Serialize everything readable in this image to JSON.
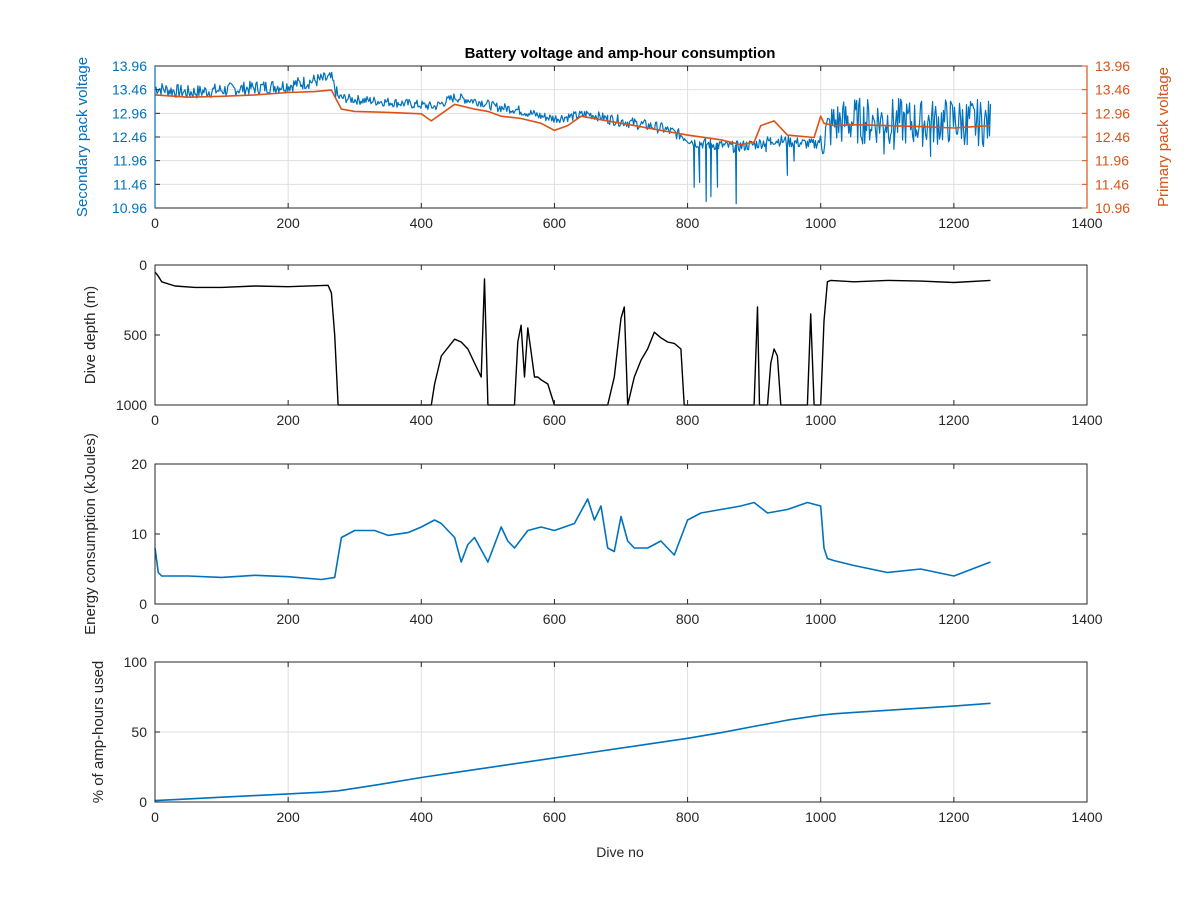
{
  "figure": {
    "title": "Battery voltage and amp-hour consumption",
    "xlabel": "Dive no"
  },
  "colors": {
    "blue": "#0072BD",
    "orange": "#D95319",
    "black": "#000000",
    "grid": "#dfdfdf",
    "axis": "#262626"
  },
  "chart_data": [
    {
      "type": "line",
      "ylabel": "Secondary pack voltage",
      "ylabel_right": "Primary pack voltage",
      "xlim": [
        0,
        1400
      ],
      "ylim": [
        10.96,
        13.96
      ],
      "x_ticks": [
        0,
        200,
        400,
        600,
        800,
        1000,
        1200,
        1400
      ],
      "y_ticks": [
        "10.96",
        "11.46",
        "11.96",
        "12.46",
        "12.96",
        "13.46",
        "13.96"
      ],
      "y_ticks_right": [
        "10.96",
        "11.46",
        "11.96",
        "12.46",
        "12.96",
        "13.46",
        "13.96"
      ],
      "grid": true,
      "series": [
        {
          "axis": "left",
          "color": "#0072BD",
          "x": [
            0,
            20,
            50,
            100,
            150,
            200,
            240,
            265,
            275,
            300,
            350,
            390,
            420,
            450,
            470,
            490,
            510,
            540,
            580,
            600,
            630,
            650,
            680,
            720,
            760,
            790,
            810,
            840,
            870,
            900,
            930,
            960,
            990,
            1000,
            1020,
            1050,
            1100,
            1150,
            1200,
            1250
          ],
          "y": [
            13.5,
            13.45,
            13.4,
            13.45,
            13.5,
            13.55,
            13.65,
            13.7,
            13.3,
            13.25,
            13.2,
            13.15,
            13.1,
            13.3,
            13.25,
            13.2,
            13.1,
            13.05,
            12.9,
            12.85,
            12.9,
            12.95,
            12.85,
            12.75,
            12.65,
            12.5,
            12.35,
            12.3,
            12.25,
            12.3,
            12.4,
            12.35,
            12.3,
            12.4,
            12.75,
            12.8,
            12.8,
            12.75,
            12.8,
            12.75
          ],
          "noisy_segments": [
            {
              "x": [
                0,
                275
              ],
              "amplitude": 0.15
            },
            {
              "x": [
                275,
                680
              ],
              "amplitude": 0.1
            },
            {
              "x": [
                680,
                1000
              ],
              "amplitude": 0.12
            },
            {
              "x": [
                1000,
                1255
              ],
              "amplitude": 0.5
            }
          ],
          "spikes": [
            {
              "x": 810,
              "y": 11.4
            },
            {
              "x": 818,
              "y": 11.5
            },
            {
              "x": 828,
              "y": 11.1
            },
            {
              "x": 835,
              "y": 11.2
            },
            {
              "x": 845,
              "y": 11.4
            },
            {
              "x": 873,
              "y": 11.05
            },
            {
              "x": 918,
              "y": 12.15
            },
            {
              "x": 925,
              "y": 12.3
            },
            {
              "x": 950,
              "y": 11.65
            },
            {
              "x": 960,
              "y": 11.95
            },
            {
              "x": 1095,
              "y": 12.1
            },
            {
              "x": 1110,
              "y": 12.2
            },
            {
              "x": 1165,
              "y": 12.05
            },
            {
              "x": 1220,
              "y": 12.3
            }
          ]
        },
        {
          "axis": "right",
          "color": "#D95319",
          "x": [
            0,
            50,
            100,
            150,
            200,
            240,
            265,
            280,
            300,
            350,
            400,
            415,
            430,
            450,
            480,
            500,
            520,
            550,
            580,
            600,
            620,
            640,
            680,
            720,
            760,
            800,
            850,
            880,
            900,
            910,
            930,
            950,
            990,
            1000,
            1005,
            1020,
            1050,
            1100,
            1150,
            1200,
            1255
          ],
          "y": [
            13.35,
            13.3,
            13.32,
            13.35,
            13.4,
            13.42,
            13.45,
            13.05,
            13.0,
            12.98,
            12.95,
            12.8,
            12.95,
            13.15,
            13.05,
            13.0,
            12.9,
            12.85,
            12.75,
            12.6,
            12.7,
            12.9,
            12.8,
            12.7,
            12.6,
            12.5,
            12.4,
            12.3,
            12.35,
            12.7,
            12.8,
            12.5,
            12.45,
            12.9,
            12.75,
            12.7,
            12.72,
            12.7,
            12.68,
            12.65,
            12.7
          ]
        }
      ]
    },
    {
      "type": "line",
      "ylabel": "Dive depth (m)",
      "xlim": [
        0,
        1400
      ],
      "ylim": [
        0,
        1000
      ],
      "y_reversed": true,
      "x_ticks": [
        0,
        200,
        400,
        600,
        800,
        1000,
        1200,
        1400
      ],
      "y_ticks": [
        "0",
        "500",
        "1000"
      ],
      "grid": false,
      "series": [
        {
          "color": "#000000",
          "x": [
            0,
            5,
            10,
            30,
            60,
            100,
            150,
            200,
            260,
            265,
            270,
            275,
            278,
            300,
            350,
            400,
            415,
            420,
            430,
            450,
            460,
            470,
            480,
            490,
            495,
            500,
            505,
            510,
            540,
            545,
            550,
            555,
            560,
            565,
            570,
            575,
            580,
            590,
            600,
            605,
            610,
            640,
            680,
            690,
            700,
            705,
            710,
            720,
            730,
            740,
            750,
            760,
            770,
            780,
            790,
            795,
            800,
            850,
            900,
            905,
            908,
            912,
            920,
            925,
            930,
            935,
            940,
            945,
            950,
            980,
            985,
            990,
            995,
            1000,
            1005,
            1010,
            1015,
            1050,
            1100,
            1150,
            1200,
            1255
          ],
          "y": [
            50,
            80,
            120,
            150,
            160,
            160,
            150,
            155,
            145,
            200,
            500,
            1000,
            1000,
            1000,
            1000,
            1000,
            1000,
            850,
            650,
            530,
            550,
            600,
            700,
            800,
            100,
            1000,
            1000,
            1000,
            1000,
            550,
            430,
            800,
            450,
            620,
            800,
            800,
            820,
            850,
            1000,
            1000,
            1000,
            1000,
            1000,
            800,
            380,
            300,
            1000,
            800,
            680,
            600,
            480,
            520,
            550,
            560,
            600,
            1000,
            1000,
            1000,
            1000,
            300,
            1000,
            1000,
            1000,
            700,
            600,
            650,
            1000,
            1000,
            1000,
            1000,
            350,
            1000,
            1000,
            1000,
            400,
            120,
            110,
            120,
            110,
            115,
            125,
            110
          ]
        }
      ]
    },
    {
      "type": "line",
      "ylabel": "Energy consumption (kJoules)",
      "xlim": [
        0,
        1400
      ],
      "ylim": [
        0,
        20
      ],
      "x_ticks": [
        0,
        200,
        400,
        600,
        800,
        1000,
        1200,
        1400
      ],
      "y_ticks": [
        "0",
        "10",
        "20"
      ],
      "grid": false,
      "series": [
        {
          "color": "#0072BD",
          "x": [
            0,
            5,
            10,
            50,
            100,
            150,
            200,
            250,
            270,
            280,
            300,
            330,
            350,
            380,
            400,
            420,
            430,
            450,
            460,
            470,
            480,
            500,
            520,
            530,
            540,
            560,
            580,
            600,
            630,
            650,
            660,
            670,
            680,
            690,
            700,
            710,
            720,
            740,
            760,
            780,
            800,
            820,
            850,
            880,
            900,
            920,
            950,
            980,
            1000,
            1005,
            1010,
            1020,
            1050,
            1100,
            1150,
            1200,
            1255
          ],
          "y": [
            8,
            4.5,
            4,
            4,
            3.8,
            4.1,
            3.9,
            3.5,
            3.8,
            9.5,
            10.5,
            10.5,
            9.8,
            10.2,
            11,
            12,
            11.5,
            9.5,
            6,
            8.5,
            9.5,
            6,
            11,
            9,
            8,
            10.5,
            11,
            10.5,
            11.5,
            15,
            12,
            14,
            8,
            7.5,
            12.5,
            9,
            8,
            8,
            9,
            7,
            12,
            13,
            13.5,
            14,
            14.5,
            13,
            13.5,
            14.5,
            14,
            8,
            6.5,
            6.2,
            5.5,
            4.5,
            5,
            4,
            6
          ]
        }
      ]
    },
    {
      "type": "line",
      "ylabel": "% of amp-hours used",
      "xlim": [
        0,
        1400
      ],
      "ylim": [
        0,
        100
      ],
      "x_ticks": [
        0,
        200,
        400,
        600,
        800,
        1000,
        1200,
        1400
      ],
      "y_ticks": [
        "0",
        "50",
        "100"
      ],
      "grid": true,
      "series": [
        {
          "color": "#0072BD",
          "x": [
            0,
            50,
            100,
            150,
            200,
            250,
            275,
            300,
            350,
            400,
            450,
            500,
            550,
            600,
            650,
            700,
            750,
            800,
            850,
            900,
            950,
            1000,
            1020,
            1050,
            1100,
            1150,
            1200,
            1255
          ],
          "y": [
            1,
            2.2,
            3.4,
            4.6,
            5.8,
            7,
            8,
            9.8,
            13.5,
            17.5,
            21,
            24.5,
            28,
            31.5,
            35,
            38.5,
            42,
            45.5,
            49.5,
            54,
            58.5,
            62,
            63,
            64,
            65.5,
            67,
            68.5,
            70.5
          ]
        }
      ]
    }
  ]
}
